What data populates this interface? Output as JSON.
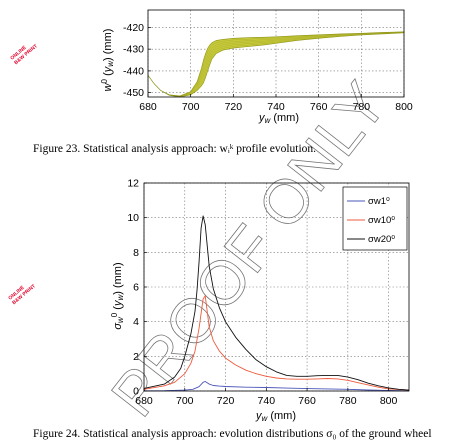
{
  "watermark": "PROOF ONLY",
  "stamps": [
    "ONLINE",
    "B&W PRINT"
  ],
  "caption_top": "Figure 23.   Statistical analysis approach: wᵢᵏ profile evolution.",
  "caption_bottom": "Figure 24.   Statistical analysis approach: evolution distributions σ₀ of the ground wheel",
  "colors": {
    "band": "#c6c93a",
    "band_edge": "#8f9418",
    "s1": "#4b56b8",
    "s10": "#ee5a3c",
    "s20": "#111111",
    "frame": "#000000"
  },
  "chart_data": [
    {
      "type": "area",
      "title": "",
      "xlabel": "y_w (mm)",
      "ylabel": "w⁰(y_w) (mm)",
      "xlim": [
        680,
        800
      ],
      "ylim": [
        -452,
        -412
      ],
      "xticks": [
        680,
        700,
        720,
        740,
        760,
        780,
        800
      ],
      "yticks": [
        -450,
        -440,
        -430,
        -420
      ],
      "grid": true,
      "series": [
        {
          "x": [
            680,
            683,
            686,
            690,
            695,
            700,
            703,
            705,
            706,
            707,
            708,
            709,
            710,
            712,
            715,
            720,
            725,
            730,
            735,
            740,
            750,
            760,
            770,
            780,
            790,
            800
          ],
          "upper": [
            -442,
            -446,
            -449,
            -451,
            -451.5,
            -449.5,
            -445,
            -439,
            -435,
            -432,
            -429.5,
            -428,
            -427,
            -426,
            -425.5,
            -425,
            -424.8,
            -424.6,
            -424.5,
            -424.3,
            -423.8,
            -423.4,
            -423,
            -422.7,
            -422.3,
            -422
          ],
          "lower": [
            -442,
            -446,
            -449,
            -451.2,
            -452,
            -451,
            -449,
            -447,
            -445.5,
            -443,
            -440,
            -437,
            -434.5,
            -432,
            -430.5,
            -429.5,
            -429,
            -428.5,
            -428,
            -427.3,
            -426,
            -425,
            -424.2,
            -423.5,
            -423,
            -422.5
          ]
        }
      ]
    },
    {
      "type": "line",
      "title": "",
      "xlabel": "y_w (mm)",
      "ylabel": "σ_w⁰(y_w) (mm)",
      "xlim": [
        680,
        810
      ],
      "ylim": [
        0,
        12
      ],
      "xticks": [
        680,
        700,
        720,
        740,
        760,
        780,
        800
      ],
      "yticks": [
        0,
        2,
        4,
        6,
        8,
        10,
        12
      ],
      "grid": true,
      "legend": "top-right",
      "series": [
        {
          "name": "σw1⁰",
          "color_key": "s1",
          "x": [
            680,
            690,
            700,
            704,
            707,
            709,
            710,
            711,
            712,
            714,
            717,
            720,
            730,
            740,
            750,
            760,
            770,
            780,
            790,
            800,
            810
          ],
          "y": [
            0.01,
            0.02,
            0.05,
            0.1,
            0.25,
            0.5,
            0.55,
            0.48,
            0.4,
            0.32,
            0.28,
            0.26,
            0.22,
            0.2,
            0.17,
            0.14,
            0.12,
            0.1,
            0.06,
            0.03,
            0.01
          ]
        },
        {
          "name": "σw10⁰",
          "color_key": "s10",
          "x": [
            680,
            690,
            695,
            700,
            703,
            705,
            707,
            709,
            710,
            711,
            712,
            714,
            717,
            720,
            725,
            730,
            735,
            740,
            745,
            750,
            755,
            760,
            765,
            770,
            775,
            780,
            785,
            790,
            795,
            800,
            810
          ],
          "y": [
            0.1,
            0.3,
            0.5,
            1.0,
            1.6,
            2.3,
            3.6,
            5.3,
            5.5,
            4.6,
            3.7,
            2.9,
            2.3,
            1.9,
            1.5,
            1.2,
            1.0,
            0.85,
            0.75,
            0.7,
            0.68,
            0.68,
            0.7,
            0.72,
            0.7,
            0.62,
            0.48,
            0.35,
            0.22,
            0.12,
            0.05
          ]
        },
        {
          "name": "σw20⁰",
          "color_key": "s20",
          "x": [
            680,
            690,
            695,
            698,
            700,
            703,
            705,
            706,
            707,
            708,
            709,
            710,
            711,
            712,
            714,
            717,
            720,
            725,
            730,
            735,
            740,
            745,
            750,
            755,
            760,
            765,
            770,
            775,
            780,
            785,
            790,
            795,
            800,
            805,
            810
          ],
          "y": [
            0.15,
            0.4,
            0.8,
            1.3,
            2.0,
            3.3,
            4.6,
            5.8,
            7.4,
            9.4,
            10.1,
            9.6,
            8.4,
            7.2,
            5.9,
            4.8,
            4.0,
            3.1,
            2.4,
            1.8,
            1.4,
            1.1,
            0.9,
            0.85,
            0.85,
            0.88,
            0.9,
            0.9,
            0.8,
            0.65,
            0.45,
            0.3,
            0.18,
            0.1,
            0.05
          ]
        }
      ]
    }
  ]
}
